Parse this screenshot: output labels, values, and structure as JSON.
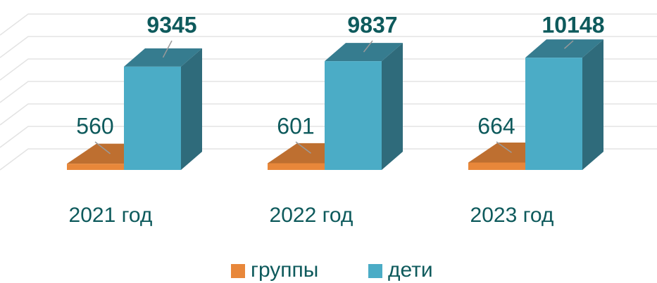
{
  "chart_data": {
    "type": "bar3d",
    "categories": [
      "2021 год",
      "2022 год",
      "2023 год"
    ],
    "series": [
      {
        "name": "группы",
        "color": "#e8873a",
        "values": [
          560,
          601,
          664
        ]
      },
      {
        "name": "дети",
        "color": "#4bacc6",
        "values": [
          9345,
          9837,
          10148
        ]
      }
    ],
    "ylim": [
      0,
      12000
    ],
    "grid": true
  }
}
